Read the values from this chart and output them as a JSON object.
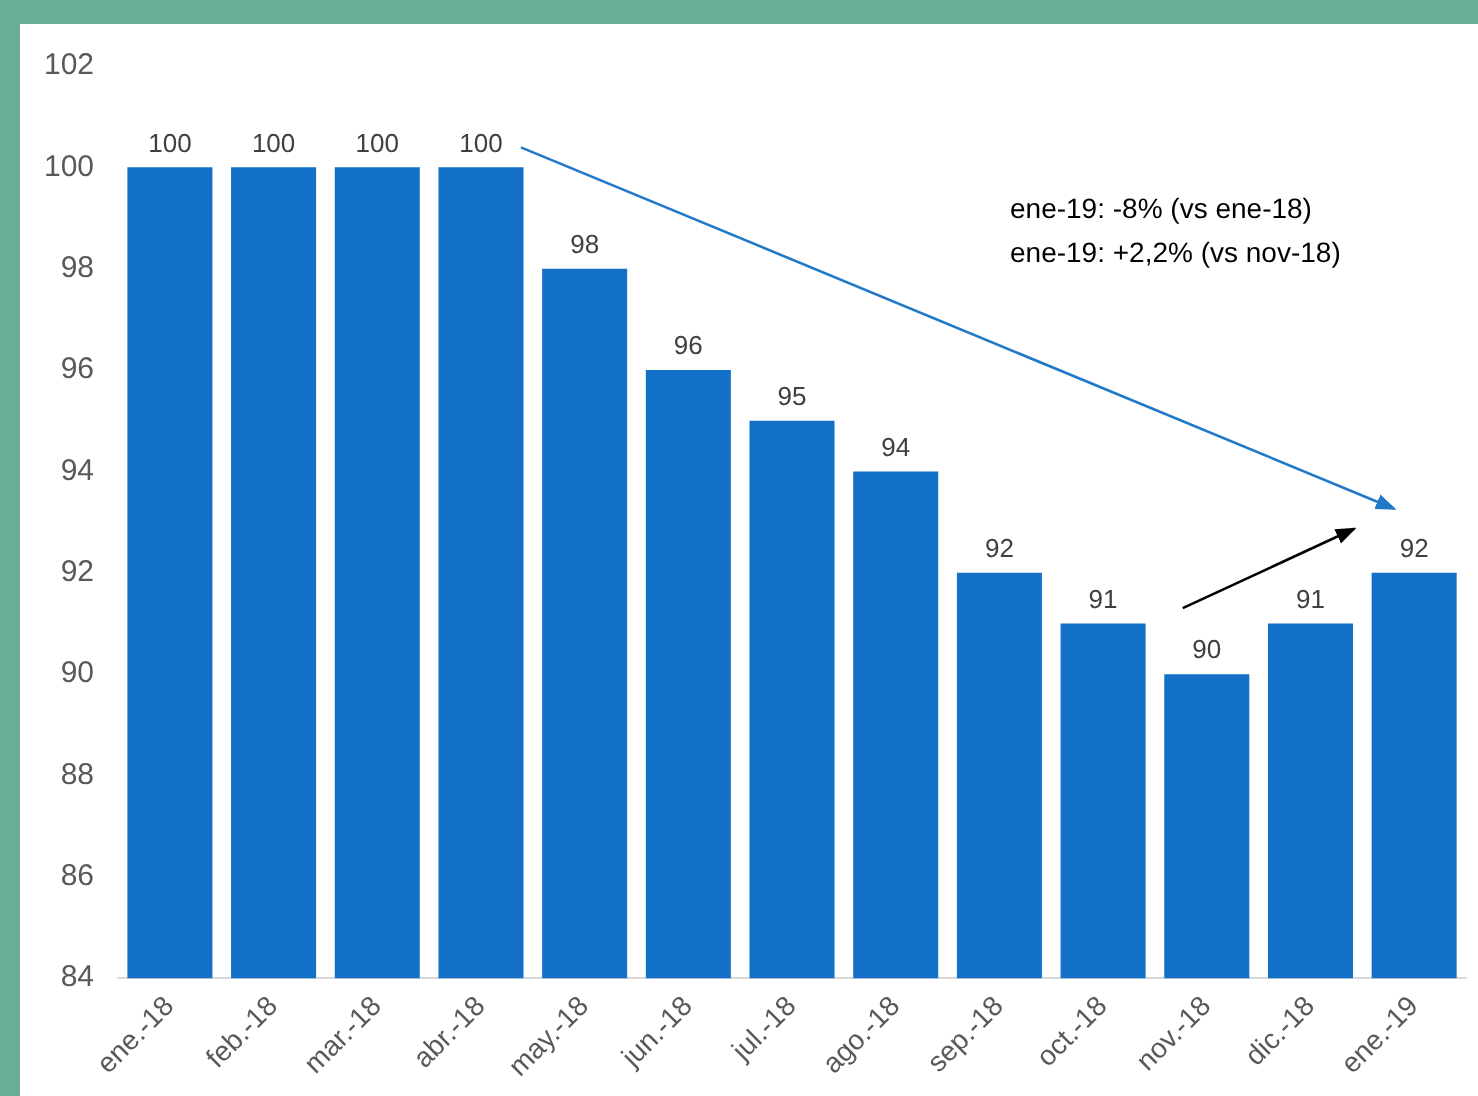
{
  "chart_data": {
    "type": "bar",
    "categories": [
      "ene.-18",
      "feb.-18",
      "mar.-18",
      "abr.-18",
      "may.-18",
      "jun.-18",
      "jul.-18",
      "ago.-18",
      "sep.-18",
      "oct.-18",
      "nov.-18",
      "dic.-18",
      "ene.-19"
    ],
    "values": [
      100,
      100,
      100,
      100,
      98,
      96,
      95,
      94,
      92,
      91,
      90,
      91,
      92
    ],
    "color": "#1270c8",
    "ylim": [
      84,
      102
    ],
    "yticks": [
      84,
      86,
      88,
      90,
      92,
      94,
      96,
      98,
      100,
      102
    ],
    "grid": false,
    "legend": false,
    "data_labels": true,
    "annotations": [
      "ene-19: -8% (vs ene-18)",
      "ene-19: +2,2% (vs nov-18)"
    ]
  }
}
